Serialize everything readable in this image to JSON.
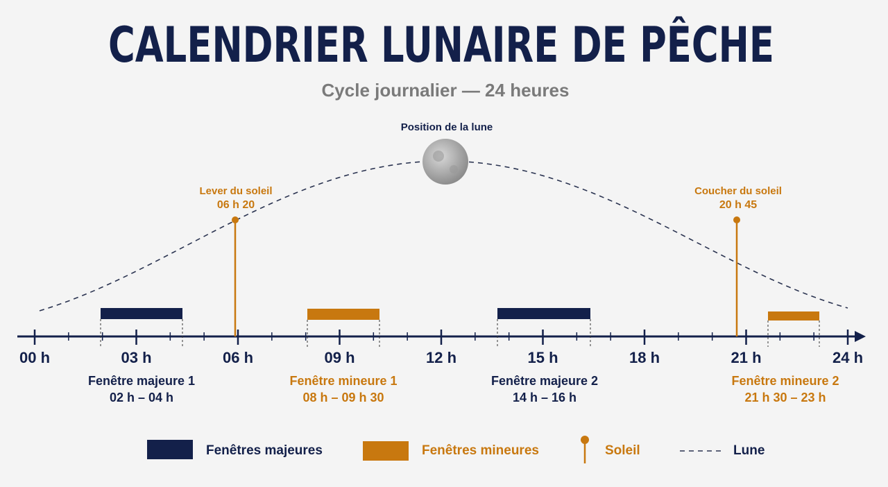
{
  "title": "CALENDRIER LUNAIRE DE PÊCHE",
  "subtitle": "Cycle journalier — 24 heures",
  "moon_label": "Position de la lune",
  "sunrise": {
    "label": "Lever du soleil",
    "time": "06 h 20"
  },
  "sunset": {
    "label": "Coucher du soleil",
    "time": "20 h 45"
  },
  "ticks": [
    "00 h",
    "03 h",
    "06 h",
    "09 h",
    "12 h",
    "15 h",
    "18 h",
    "21 h",
    "24 h"
  ],
  "windows": [
    {
      "name": "Fenêtre majeure 1",
      "time": "02 h – 04 h"
    },
    {
      "name": "Fenêtre mineure 1",
      "time": "08 h – 09 h 30"
    },
    {
      "name": "Fenêtre majeure 2",
      "time": "14 h – 16 h"
    },
    {
      "name": "Fenêtre mineure 2",
      "time": "21 h 30 – 23 h"
    }
  ],
  "legend": [
    "Fenêtres majeures",
    "Fenêtres mineures",
    "Soleil",
    "Lune"
  ]
}
